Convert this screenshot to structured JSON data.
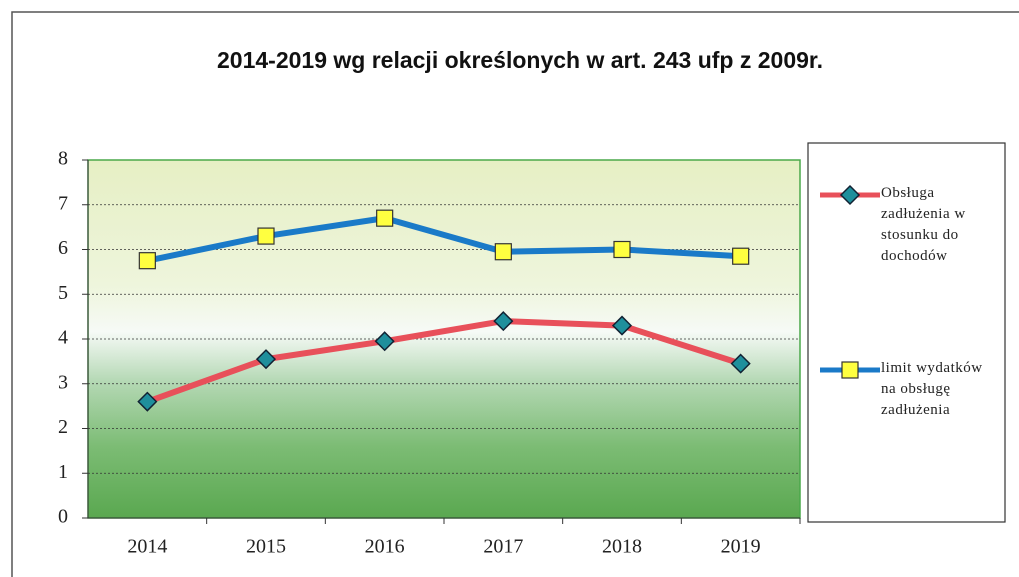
{
  "chart_data": {
    "type": "line",
    "title": "2014-2019 wg relacji określonych w art. 243 ufp z 2009r.",
    "categories": [
      "2014",
      "2015",
      "2016",
      "2017",
      "2018",
      "2019"
    ],
    "series": [
      {
        "name": "Obsługa zadłużenia w stosunku do dochodów",
        "color": "#e8505a",
        "marker": "diamond",
        "marker_color": "#1f8f9c",
        "values": [
          2.6,
          3.55,
          3.95,
          4.4,
          4.3,
          3.45
        ]
      },
      {
        "name": "limit wydatków na obsługę zadłużenia",
        "color": "#1a7ac8",
        "marker": "square",
        "marker_color": "#ffff40",
        "values": [
          5.75,
          6.3,
          6.7,
          5.95,
          6.0,
          5.85
        ]
      }
    ],
    "ylim": [
      0,
      8
    ],
    "yticks": [
      0,
      1,
      2,
      3,
      4,
      5,
      6,
      7,
      8
    ],
    "grid": true,
    "legend": "right"
  }
}
